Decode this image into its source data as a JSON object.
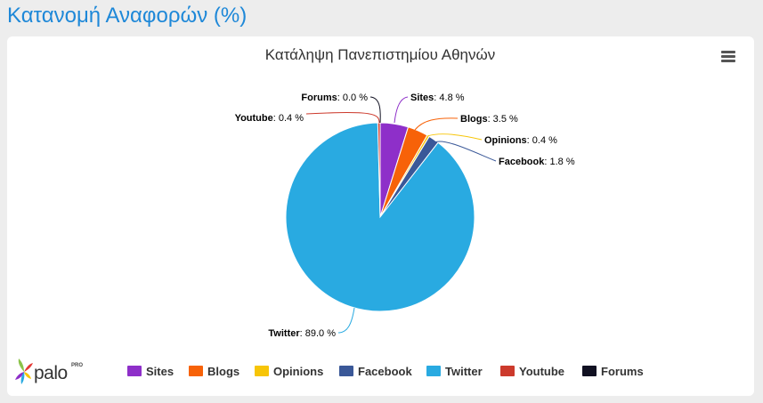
{
  "page": {
    "heading": "Κατανομή Αναφορών (%)"
  },
  "logo": {
    "text": "palo",
    "superscript": "PRO"
  },
  "chart_data": {
    "type": "pie",
    "title": "Κατάληψη Πανεπιστημίου Αθηνών",
    "unit": "%",
    "legend_position": "bottom",
    "slices": [
      {
        "name": "Sites",
        "value": 4.8,
        "label_value": "4.8 %",
        "color": "#8e2fc9"
      },
      {
        "name": "Blogs",
        "value": 3.5,
        "label_value": "3.5 %",
        "color": "#f76208"
      },
      {
        "name": "Opinions",
        "value": 0.4,
        "label_value": "0.4 %",
        "color": "#f7c507"
      },
      {
        "name": "Facebook",
        "value": 1.8,
        "label_value": "1.8 %",
        "color": "#3a5898"
      },
      {
        "name": "Twitter",
        "value": 89.0,
        "label_value": "89.0 %",
        "color": "#29aae1"
      },
      {
        "name": "Youtube",
        "value": 0.4,
        "label_value": "0.4 %",
        "color": "#cc3a2c"
      },
      {
        "name": "Forums",
        "value": 0.0,
        "label_value": "0.0 %",
        "color": "#111122"
      }
    ]
  }
}
